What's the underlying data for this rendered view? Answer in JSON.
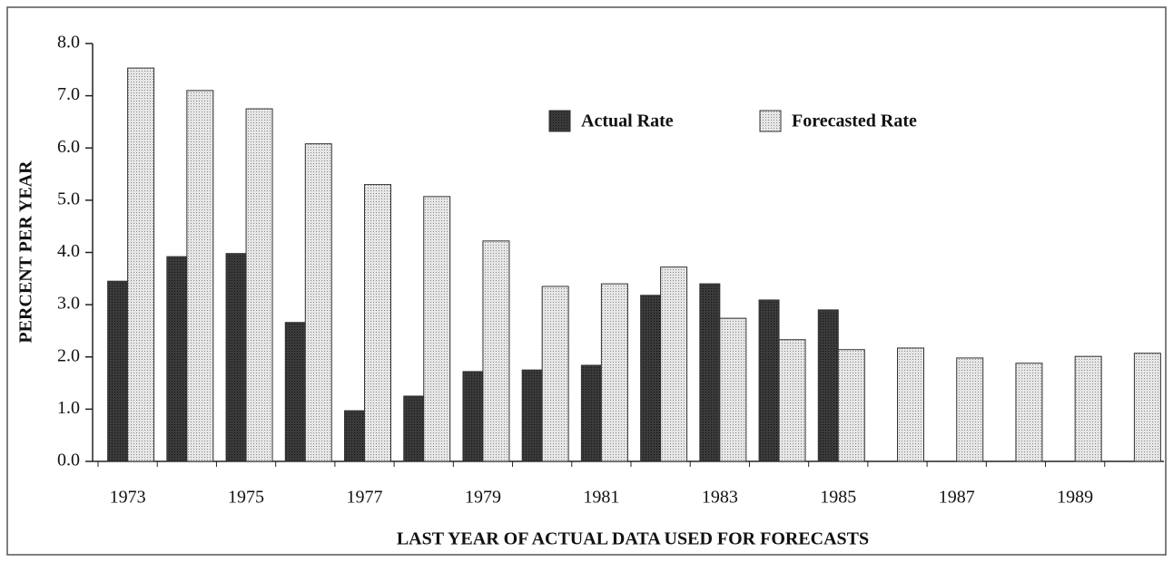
{
  "chart_data": {
    "type": "bar",
    "xlabel": "LAST YEAR OF ACTUAL DATA USED FOR FORECASTS",
    "ylabel": "PERCENT PER YEAR",
    "categories": [
      "1973",
      null,
      "1975",
      null,
      "1977",
      null,
      "1979",
      null,
      "1981",
      null,
      "1983",
      null,
      "1985",
      null,
      "1987",
      null,
      "1989",
      null
    ],
    "series": [
      {
        "name": "Actual Rate",
        "color": "#3a3a3a",
        "values": [
          3.45,
          3.92,
          3.98,
          2.66,
          0.97,
          1.25,
          1.72,
          1.75,
          1.84,
          3.18,
          3.4,
          3.09,
          2.9,
          null,
          null,
          null,
          null,
          null
        ]
      },
      {
        "name": "Forecasted Rate",
        "color": "#e6e6e6",
        "values": [
          7.53,
          7.1,
          6.75,
          6.08,
          5.3,
          5.07,
          4.22,
          3.35,
          3.4,
          3.72,
          2.74,
          2.33,
          2.14,
          2.17,
          1.98,
          1.88,
          2.01,
          2.07
        ]
      }
    ],
    "ylim": [
      0,
      8
    ],
    "yticks": [
      {
        "value": 0,
        "label": "0.0"
      },
      {
        "value": 1,
        "label": "1.0"
      },
      {
        "value": 2,
        "label": "2.0"
      },
      {
        "value": 3,
        "label": "3.0"
      },
      {
        "value": 4,
        "label": "4.0"
      },
      {
        "value": 5,
        "label": "5.0"
      },
      {
        "value": 6,
        "label": "6.0"
      },
      {
        "value": 7,
        "label": "7.0"
      },
      {
        "value": 8,
        "label": "8.0"
      }
    ],
    "grid": false,
    "legend": "upper center"
  }
}
